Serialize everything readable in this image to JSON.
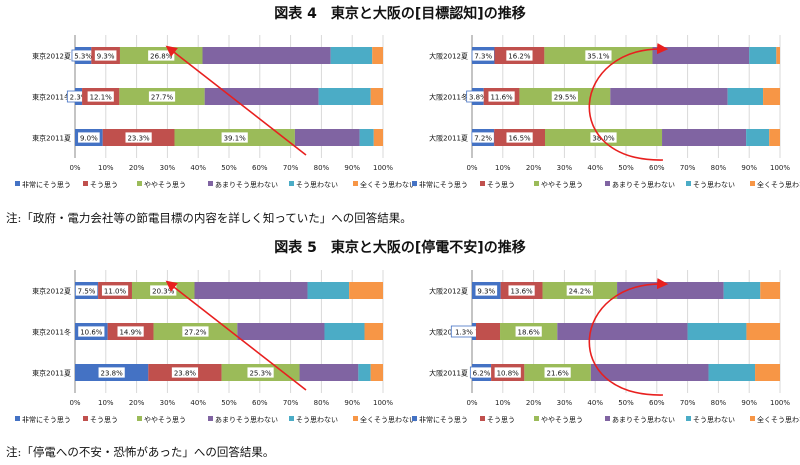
{
  "figures": [
    {
      "title": "図表 4　東京と大阪の[目標認知]の推移",
      "note": "注:「政府・電力会社等の節電目標の内容を詳しく知っていた」への回答結果。"
    },
    {
      "title": "図表 5　東京と大阪の[停電不安]の推移",
      "note": "注:「停電への不安・恐怖があった」への回答結果。"
    }
  ],
  "legend": [
    "非常にそう思う",
    "そう思う",
    "ややそう思う",
    "あまりそう思わない",
    "そう思わない",
    "全くそう思わない"
  ],
  "colors": [
    "#4472c4",
    "#c0504d",
    "#9bbb59",
    "#8064a2",
    "#4bacc6",
    "#f79646"
  ],
  "chart_data": [
    {
      "type": "bar",
      "orientation": "horizontal",
      "stacked": true,
      "xlim": [
        0,
        100
      ],
      "xticks": [
        "0%",
        "10%",
        "20%",
        "30%",
        "40%",
        "50%",
        "60%",
        "70%",
        "80%",
        "90%",
        "100%"
      ],
      "categories": [
        "東京2012夏",
        "東京2011冬",
        "東京2011夏"
      ],
      "series": [
        {
          "name": "非常にそう思う",
          "values": [
            5.3,
            2.3,
            9.0
          ]
        },
        {
          "name": "そう思う",
          "values": [
            9.3,
            12.1,
            23.3
          ]
        },
        {
          "name": "ややそう思う",
          "values": [
            26.8,
            27.7,
            39.1
          ]
        },
        {
          "name": "あまりそう思わない",
          "values": [
            41.6,
            37.0,
            21.0
          ]
        },
        {
          "name": "そう思わない",
          "values": [
            13.5,
            16.9,
            4.6
          ]
        },
        {
          "name": "全くそう思わない",
          "values": [
            3.5,
            4.0,
            3.0
          ]
        }
      ],
      "labels": [
        [
          "5.3%",
          "9.3%",
          "26.8%"
        ],
        [
          "2.3%",
          "12.1%",
          "27.7%"
        ],
        [
          "9.0%",
          "23.3%",
          "39.1%"
        ]
      ],
      "arrow": "straight"
    },
    {
      "type": "bar",
      "orientation": "horizontal",
      "stacked": true,
      "xlim": [
        0,
        100
      ],
      "xticks": [
        "0%",
        "10%",
        "20%",
        "30%",
        "40%",
        "50%",
        "60%",
        "70%",
        "80%",
        "90%",
        "100%"
      ],
      "categories": [
        "大阪2012夏",
        "大阪2011冬",
        "大阪2011夏"
      ],
      "series": [
        {
          "name": "非常にそう思う",
          "values": [
            7.3,
            3.8,
            7.2
          ]
        },
        {
          "name": "そう思う",
          "values": [
            16.2,
            11.6,
            16.5
          ]
        },
        {
          "name": "ややそう思う",
          "values": [
            35.1,
            29.5,
            38.0
          ]
        },
        {
          "name": "あまりそう思わない",
          "values": [
            31.4,
            38.1,
            27.3
          ]
        },
        {
          "name": "そう思わない",
          "values": [
            8.8,
            11.5,
            7.5
          ]
        },
        {
          "name": "全くそう思わない",
          "values": [
            1.2,
            5.5,
            3.5
          ]
        }
      ],
      "labels": [
        [
          "7.3%",
          "16.2%",
          "35.1%"
        ],
        [
          "3.8%",
          "11.6%",
          "29.5%"
        ],
        [
          "7.2%",
          "16.5%",
          "38.0%"
        ]
      ],
      "arrow": "curved"
    },
    {
      "type": "bar",
      "orientation": "horizontal",
      "stacked": true,
      "xlim": [
        0,
        100
      ],
      "xticks": [
        "0%",
        "10%",
        "20%",
        "30%",
        "40%",
        "50%",
        "60%",
        "70%",
        "80%",
        "90%",
        "100%"
      ],
      "categories": [
        "東京2012夏",
        "東京2011冬",
        "東京2011夏"
      ],
      "series": [
        {
          "name": "非常にそう思う",
          "values": [
            7.5,
            10.6,
            23.8
          ]
        },
        {
          "name": "そう思う",
          "values": [
            11.0,
            14.9,
            23.8
          ]
        },
        {
          "name": "ややそう思う",
          "values": [
            20.3,
            27.2,
            25.3
          ]
        },
        {
          "name": "あまりそう思わない",
          "values": [
            36.7,
            28.3,
            19.1
          ]
        },
        {
          "name": "そう思わない",
          "values": [
            13.5,
            13.0,
            4.0
          ]
        },
        {
          "name": "全くそう思わない",
          "values": [
            11.0,
            6.0,
            4.0
          ]
        }
      ],
      "labels": [
        [
          "7.5%",
          "11.0%",
          "20.3%"
        ],
        [
          "10.6%",
          "14.9%",
          "27.2%"
        ],
        [
          "23.8%",
          "23.8%",
          "25.3%"
        ]
      ],
      "arrow": "straight"
    },
    {
      "type": "bar",
      "orientation": "horizontal",
      "stacked": true,
      "xlim": [
        0,
        100
      ],
      "xticks": [
        "0%",
        "10%",
        "20%",
        "30%",
        "40%",
        "50%",
        "60%",
        "70%",
        "80%",
        "90%",
        "100%"
      ],
      "categories": [
        "大阪2012夏",
        "大阪2011冬",
        "大阪2011夏"
      ],
      "series": [
        {
          "name": "非常にそう思う",
          "values": [
            9.3,
            1.3,
            6.2
          ]
        },
        {
          "name": "そう思う",
          "values": [
            13.6,
            7.8,
            10.8
          ]
        },
        {
          "name": "ややそう思う",
          "values": [
            24.2,
            18.6,
            21.6
          ]
        },
        {
          "name": "あまりそう思わない",
          "values": [
            34.6,
            42.3,
            38.2
          ]
        },
        {
          "name": "そう思わない",
          "values": [
            11.9,
            19.1,
            15.1
          ]
        },
        {
          "name": "全くそう思わない",
          "values": [
            6.4,
            10.9,
            8.1
          ]
        }
      ],
      "labels": [
        [
          "9.3%",
          "13.6%",
          "24.2%"
        ],
        [
          "1.3% 7.8%",
          "",
          "18.6%"
        ],
        [
          "6.2%",
          "10.8%",
          "21.6%"
        ]
      ],
      "arrow": "curved"
    }
  ]
}
